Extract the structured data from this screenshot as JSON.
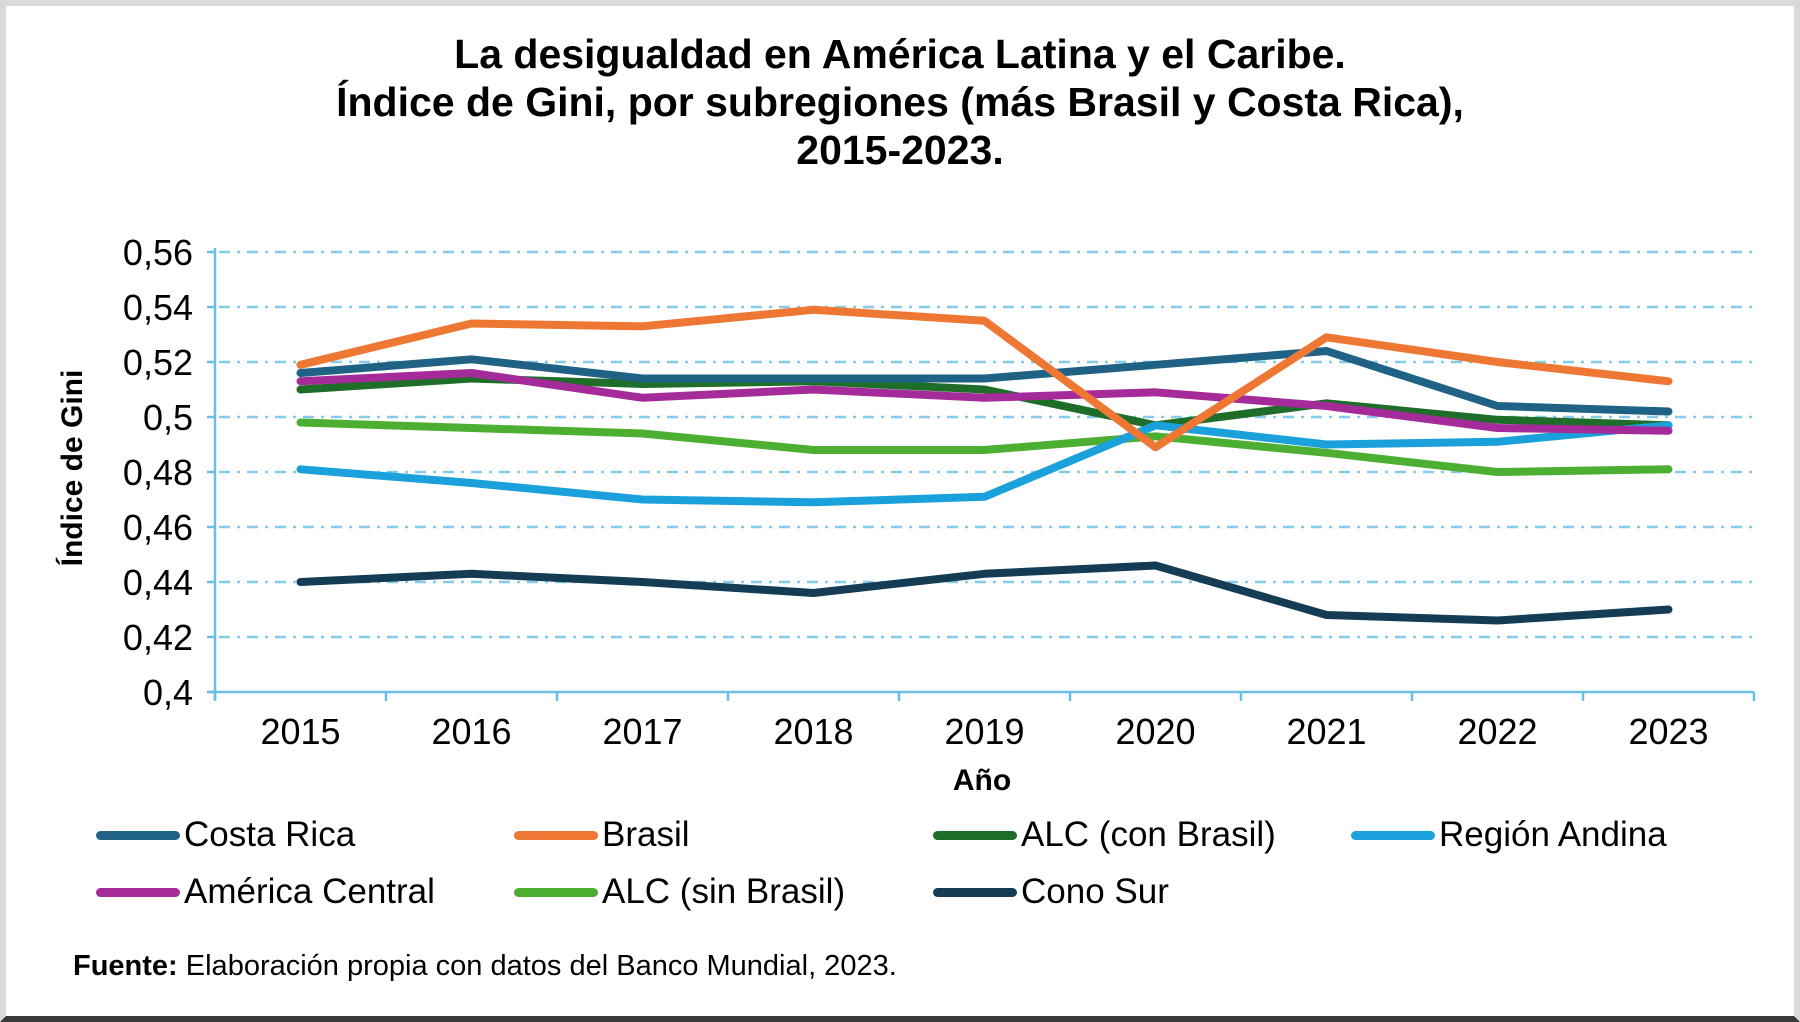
{
  "chart_data": {
    "type": "line",
    "title": [
      "La desigualdad en América Latina y el Caribe.",
      "Índice de Gini, por subregiones (más Brasil y Costa Rica),",
      "2015-2023."
    ],
    "xlabel": "Año",
    "ylabel": "Índice de Gini",
    "categories": [
      "2015",
      "2016",
      "2017",
      "2018",
      "2019",
      "2020",
      "2021",
      "2022",
      "2023"
    ],
    "ylim": [
      0.4,
      0.56
    ],
    "yticks": [
      0.4,
      0.42,
      0.44,
      0.46,
      0.48,
      0.5,
      0.52,
      0.54,
      0.56
    ],
    "ytick_labels": [
      "0,4",
      "0,42",
      "0,44",
      "0,46",
      "0,48",
      "0,5",
      "0,52",
      "0,54",
      "0,56"
    ],
    "grid": "horizontal dash-dot",
    "legend_position": "bottom",
    "series": [
      {
        "name": "Costa Rica",
        "color": "#1f6285",
        "values": [
          0.516,
          0.521,
          0.514,
          0.514,
          0.514,
          0.519,
          0.524,
          0.504,
          0.502
        ]
      },
      {
        "name": "Brasil",
        "color": "#ee7733",
        "values": [
          0.519,
          0.534,
          0.533,
          0.539,
          0.535,
          0.489,
          0.529,
          0.52,
          0.513
        ]
      },
      {
        "name": "ALC (con Brasil)",
        "color": "#1e6e2a",
        "values": [
          0.51,
          0.514,
          0.512,
          0.513,
          0.51,
          0.497,
          0.505,
          0.499,
          0.497
        ]
      },
      {
        "name": "Región Andina",
        "color": "#1aa0da",
        "values": [
          0.481,
          0.476,
          0.47,
          0.469,
          0.471,
          0.497,
          0.49,
          0.491,
          0.497
        ]
      },
      {
        "name": "América Central",
        "color": "#a52a9a",
        "values": [
          0.513,
          0.516,
          0.507,
          0.51,
          0.507,
          0.509,
          0.504,
          0.496,
          0.495
        ]
      },
      {
        "name": "ALC (sin Brasil)",
        "color": "#4caf32",
        "values": [
          0.498,
          0.496,
          0.494,
          0.488,
          0.488,
          0.493,
          0.487,
          0.48,
          0.481
        ]
      },
      {
        "name": "Cono Sur",
        "color": "#143d55",
        "values": [
          0.44,
          0.443,
          0.44,
          0.436,
          0.443,
          0.446,
          0.428,
          0.426,
          0.43
        ]
      }
    ]
  },
  "source": {
    "label": "Fuente:",
    "text": " Elaboración propia con datos del Banco Mundial, 2023."
  },
  "colors": {
    "axis": "#6cbfe4",
    "grid": "#86cbe8"
  }
}
